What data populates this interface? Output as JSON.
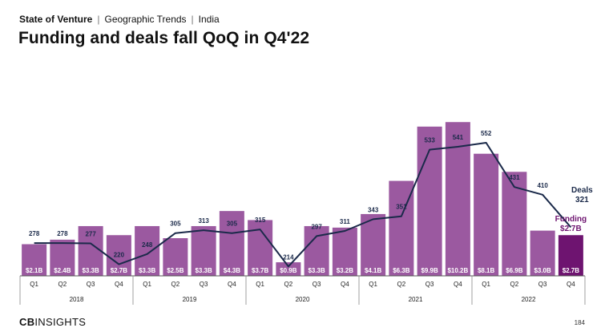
{
  "header": {
    "breadcrumb": [
      "State of Venture",
      "Geographic Trends",
      "India"
    ]
  },
  "title": "Funding and deals fall QoQ in Q4'22",
  "footer": {
    "logo": "CBINSIGHTS",
    "logo_bold": "CB",
    "logo_light": "INSIGHTS",
    "page_number": "184"
  },
  "chart_data": {
    "type": "bar",
    "title": "Funding and deals fall QoQ in Q4'22",
    "xlabel": "",
    "ylabel": "",
    "categories": [
      "Q1",
      "Q2",
      "Q3",
      "Q4",
      "Q1",
      "Q2",
      "Q3",
      "Q4",
      "Q1",
      "Q2",
      "Q3",
      "Q4",
      "Q1",
      "Q2",
      "Q3",
      "Q4",
      "Q1",
      "Q2",
      "Q3",
      "Q4"
    ],
    "years": [
      {
        "label": "2018",
        "quarters": 4
      },
      {
        "label": "2019",
        "quarters": 4
      },
      {
        "label": "2020",
        "quarters": 4
      },
      {
        "label": "2021",
        "quarters": 4
      },
      {
        "label": "2022",
        "quarters": 4
      }
    ],
    "series": [
      {
        "name": "Funding",
        "type": "bar",
        "unit": "$B",
        "values": [
          2.1,
          2.4,
          3.3,
          2.7,
          3.3,
          2.5,
          3.3,
          4.3,
          3.7,
          0.9,
          3.3,
          3.2,
          4.1,
          6.3,
          9.9,
          10.2,
          8.1,
          6.9,
          3.0,
          2.7
        ],
        "labels": [
          "$2.1B",
          "$2.4B",
          "$3.3B",
          "$2.7B",
          "$3.3B",
          "$2.5B",
          "$3.3B",
          "$4.3B",
          "$3.7B",
          "$0.9B",
          "$3.3B",
          "$3.2B",
          "$4.1B",
          "$6.3B",
          "$9.9B",
          "$10.2B",
          "$8.1B",
          "$6.9B",
          "$3.0B",
          "$2.7B"
        ],
        "color": "#9B59A0",
        "highlight_color": "#6E1470"
      },
      {
        "name": "Deals",
        "type": "line",
        "values": [
          278,
          278,
          277,
          220,
          248,
          305,
          313,
          305,
          315,
          214,
          297,
          311,
          343,
          351,
          533,
          541,
          552,
          431,
          410,
          321
        ],
        "color": "#1B2A4A"
      }
    ],
    "callouts": {
      "deals_label": "Deals",
      "deals_value": "321",
      "funding_label": "Funding",
      "funding_value": "$2.7B"
    },
    "grid": false,
    "legend": "none"
  }
}
